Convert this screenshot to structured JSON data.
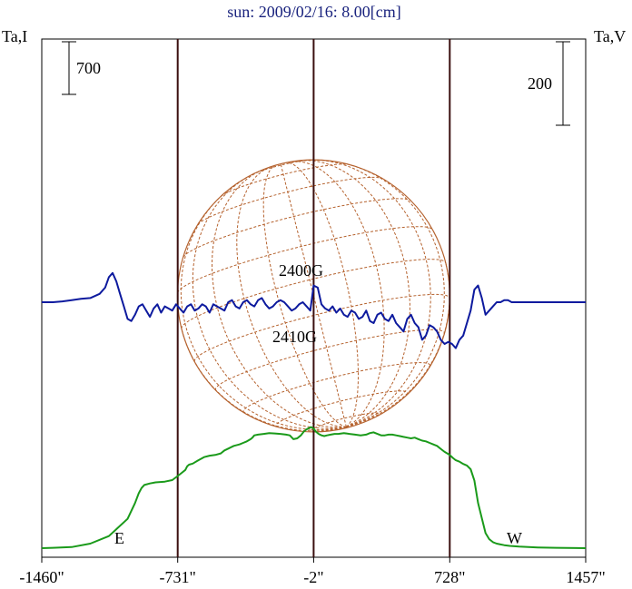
{
  "chart_data": {
    "type": "line",
    "title": "sun: 2009/02/16: 8.00[cm]",
    "left_axis_label": "Ta,I",
    "right_axis_label": "Ta,V",
    "left_scale_bar": "700",
    "right_scale_bar": "200",
    "x_ticks": [
      {
        "value": -1460,
        "label": "-1460\""
      },
      {
        "value": -731,
        "label": "-731\""
      },
      {
        "value": -2,
        "label": "-2\""
      },
      {
        "value": 728,
        "label": "728\""
      },
      {
        "value": 1457,
        "label": "1457\""
      }
    ],
    "xlim": [
      -1460,
      1457
    ],
    "limb_markers": [
      {
        "label": "E",
        "x": -1460
      },
      {
        "label": "W",
        "x": 1457
      }
    ],
    "vertical_lines_x": [
      -731,
      -2,
      728
    ],
    "annotations": [
      "2400G",
      "2410G"
    ],
    "colors": {
      "intensity": "#1a9a1a",
      "polarization": "#0d1a9e",
      "sun_grid": "#b5622e",
      "verticals": "#3a0f0f",
      "title": "#1a237e"
    },
    "series": [
      {
        "key": "intensity",
        "x": [
          -1460,
          -1400,
          -1300,
          -1200,
          -1100,
          -1000,
          -960,
          -940,
          -925,
          -910,
          -880,
          -850,
          -800,
          -760,
          -731,
          -710,
          -690,
          -680,
          -670,
          -650,
          -620,
          -590,
          -560,
          -530,
          -500,
          -480,
          -455,
          -430,
          -400,
          -380,
          -360,
          -340,
          -330,
          -320,
          -300,
          -270,
          -240,
          -210,
          -180,
          -150,
          -130,
          -110,
          -90,
          -70,
          -55,
          -40,
          -25,
          -15,
          -2,
          10,
          25,
          40,
          55,
          70,
          90,
          110,
          130,
          160,
          190,
          220,
          250,
          280,
          300,
          320,
          340,
          360,
          380,
          400,
          420,
          440,
          460,
          480,
          500,
          520,
          540,
          560,
          580,
          600,
          620,
          640,
          660,
          680,
          700,
          715,
          728,
          745,
          760,
          780,
          800,
          820,
          840,
          860,
          880,
          900,
          920,
          940,
          960,
          980,
          1000,
          1020,
          1050,
          1100,
          1150,
          1200,
          1300,
          1457
        ],
        "values": [
          0,
          5,
          15,
          60,
          160,
          390,
          600,
          730,
          800,
          840,
          860,
          875,
          885,
          905,
          960,
          1000,
          1040,
          1090,
          1110,
          1125,
          1170,
          1210,
          1230,
          1240,
          1260,
          1300,
          1330,
          1360,
          1380,
          1400,
          1420,
          1450,
          1470,
          1500,
          1510,
          1520,
          1530,
          1525,
          1520,
          1510,
          1500,
          1450,
          1460,
          1500,
          1550,
          1580,
          1600,
          1610,
          1590,
          1550,
          1520,
          1500,
          1490,
          1500,
          1510,
          1520,
          1520,
          1530,
          1520,
          1510,
          1500,
          1510,
          1530,
          1540,
          1520,
          1500,
          1500,
          1510,
          1510,
          1500,
          1490,
          1480,
          1470,
          1460,
          1470,
          1450,
          1430,
          1420,
          1400,
          1380,
          1360,
          1320,
          1280,
          1260,
          1240,
          1200,
          1170,
          1150,
          1120,
          1100,
          1050,
          900,
          600,
          400,
          200,
          120,
          80,
          60,
          50,
          40,
          30,
          20,
          15,
          10,
          5,
          0
        ]
      },
      {
        "key": "polarization",
        "x": [
          -1460,
          -1400,
          -1350,
          -1300,
          -1250,
          -1200,
          -1150,
          -1120,
          -1100,
          -1080,
          -1060,
          -1040,
          -1020,
          -1000,
          -980,
          -960,
          -940,
          -920,
          -900,
          -880,
          -860,
          -840,
          -820,
          -800,
          -780,
          -760,
          -740,
          -720,
          -700,
          -680,
          -660,
          -640,
          -620,
          -600,
          -580,
          -560,
          -540,
          -520,
          -500,
          -480,
          -460,
          -440,
          -420,
          -400,
          -380,
          -360,
          -340,
          -320,
          -300,
          -280,
          -260,
          -240,
          -220,
          -200,
          -180,
          -160,
          -140,
          -120,
          -100,
          -80,
          -60,
          -40,
          -20,
          -2,
          20,
          40,
          60,
          80,
          100,
          120,
          140,
          160,
          180,
          200,
          220,
          240,
          260,
          280,
          300,
          320,
          340,
          360,
          380,
          400,
          420,
          440,
          460,
          480,
          500,
          520,
          540,
          560,
          580,
          600,
          620,
          640,
          660,
          680,
          700,
          720,
          740,
          760,
          780,
          800,
          820,
          840,
          860,
          880,
          900,
          920,
          940,
          960,
          980,
          1000,
          1020,
          1040,
          1060,
          1080,
          1100,
          1150,
          1200,
          1250,
          1300,
          1350,
          1400,
          1457
        ],
        "values": [
          0,
          0,
          2,
          5,
          8,
          10,
          20,
          35,
          60,
          70,
          50,
          20,
          -10,
          -40,
          -45,
          -30,
          -10,
          -5,
          -20,
          -35,
          -15,
          -5,
          -25,
          -10,
          -15,
          -20,
          -5,
          -15,
          -25,
          -10,
          -5,
          -20,
          -15,
          -5,
          -10,
          -25,
          -5,
          -10,
          -15,
          -20,
          0,
          5,
          -10,
          -15,
          0,
          5,
          -5,
          -10,
          5,
          10,
          -5,
          -15,
          -10,
          0,
          5,
          0,
          -10,
          -20,
          -15,
          -5,
          0,
          -10,
          -20,
          40,
          35,
          -5,
          -15,
          -20,
          -10,
          -25,
          -15,
          -30,
          -35,
          -20,
          -25,
          -40,
          -35,
          -20,
          -45,
          -50,
          -30,
          -25,
          -40,
          -45,
          -30,
          -50,
          -60,
          -70,
          -40,
          -30,
          -50,
          -60,
          -90,
          -80,
          -55,
          -60,
          -70,
          -90,
          -100,
          -95,
          -100,
          -110,
          -90,
          -80,
          -50,
          -20,
          30,
          40,
          10,
          -30,
          -20,
          -10,
          0,
          0,
          5,
          5,
          0,
          0,
          0,
          0,
          0,
          0,
          0,
          0,
          0,
          0
        ]
      }
    ]
  }
}
